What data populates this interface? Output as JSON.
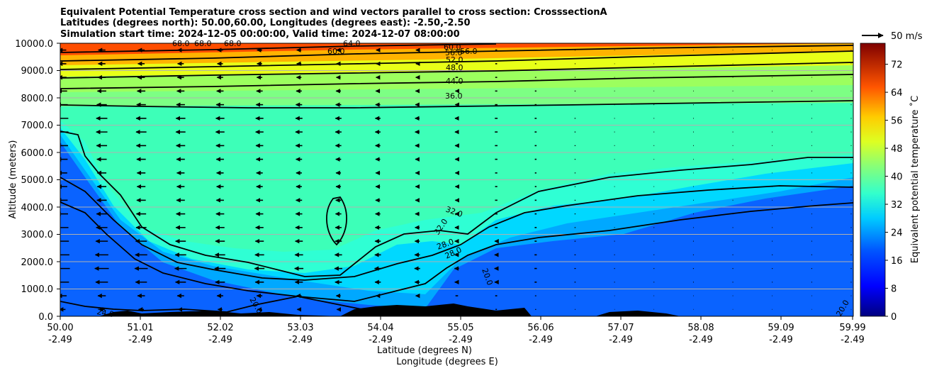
{
  "chart_data": {
    "type": "contourf-cross-section",
    "title_lines": [
      "Equivalent Potential Temperature cross section and wind vectors parallel to cross section: CrosssectionA",
      "Latitudes (degrees north): 50.00,60.00, Longitudes (degrees east): -2.50,-2.50",
      "Simulation start time: 2024-12-05 00:00:00, Valid time: 2024-12-07 08:00:00"
    ],
    "ylabel": "Altitude (meters)",
    "xlabel_lines": [
      "Latitude (degrees N)",
      "Longitude (degrees E)"
    ],
    "ylim": [
      0,
      10000
    ],
    "xlim": [
      50.0,
      59.99
    ],
    "y_ticks": [
      "0.0",
      "1000.0",
      "2000.0",
      "3000.0",
      "4000.0",
      "5000.0",
      "6000.0",
      "7000.0",
      "8000.0",
      "9000.0",
      "10000.0"
    ],
    "x_ticks": [
      {
        "lat": "50.00",
        "lon": "-2.49"
      },
      {
        "lat": "51.01",
        "lon": "-2.49"
      },
      {
        "lat": "52.02",
        "lon": "-2.49"
      },
      {
        "lat": "53.03",
        "lon": "-2.49"
      },
      {
        "lat": "54.04",
        "lon": "-2.49"
      },
      {
        "lat": "55.05",
        "lon": "-2.49"
      },
      {
        "lat": "56.06",
        "lon": "-2.49"
      },
      {
        "lat": "57.07",
        "lon": "-2.49"
      },
      {
        "lat": "58.08",
        "lon": "-2.49"
      },
      {
        "lat": "59.09",
        "lon": "-2.49"
      },
      {
        "lat": "59.99",
        "lon": "-2.49"
      }
    ],
    "grid": "horizontal",
    "colorbar": {
      "label": "Equivalent potential temperature ˚C",
      "range": [
        0,
        78
      ],
      "ticks": [
        0,
        8,
        16,
        24,
        32,
        40,
        48,
        56,
        64,
        72
      ],
      "colormap": "jet"
    },
    "wind_key": {
      "label": "50 m/s"
    },
    "contour_levels": [
      20,
      24,
      28,
      32,
      36,
      44,
      48,
      52,
      56,
      60,
      64,
      68
    ],
    "contour_labels": [
      "60.0",
      "56.0",
      "56.0",
      "52.0",
      "48.0",
      "44.0",
      "36.0",
      "60.0",
      "64.0",
      "68.0",
      "68.0",
      "68.0",
      "32.0",
      "32.0",
      "28.0",
      "28.0",
      "20.0",
      "20.0",
      "24.0",
      "20.0"
    ],
    "theta_e_profile_by_altitude_m": [
      {
        "z": 0,
        "value": 18
      },
      {
        "z": 1000,
        "value": 20
      },
      {
        "z": 2000,
        "value": 24
      },
      {
        "z": 3000,
        "value": 30
      },
      {
        "z": 5000,
        "value": 34
      },
      {
        "z": 7000,
        "value": 36
      },
      {
        "z": 8000,
        "value": 38
      },
      {
        "z": 9000,
        "value": 50
      },
      {
        "z": 10000,
        "value": 68
      }
    ],
    "wind_u_by_altitude_m": [
      {
        "z": 500,
        "u": -4
      },
      {
        "z": 1500,
        "u": -10
      },
      {
        "z": 3000,
        "u": -8
      },
      {
        "z": 5000,
        "u": -6
      },
      {
        "z": 7000,
        "u": -8
      },
      {
        "z": 9000,
        "u": -5
      }
    ]
  }
}
